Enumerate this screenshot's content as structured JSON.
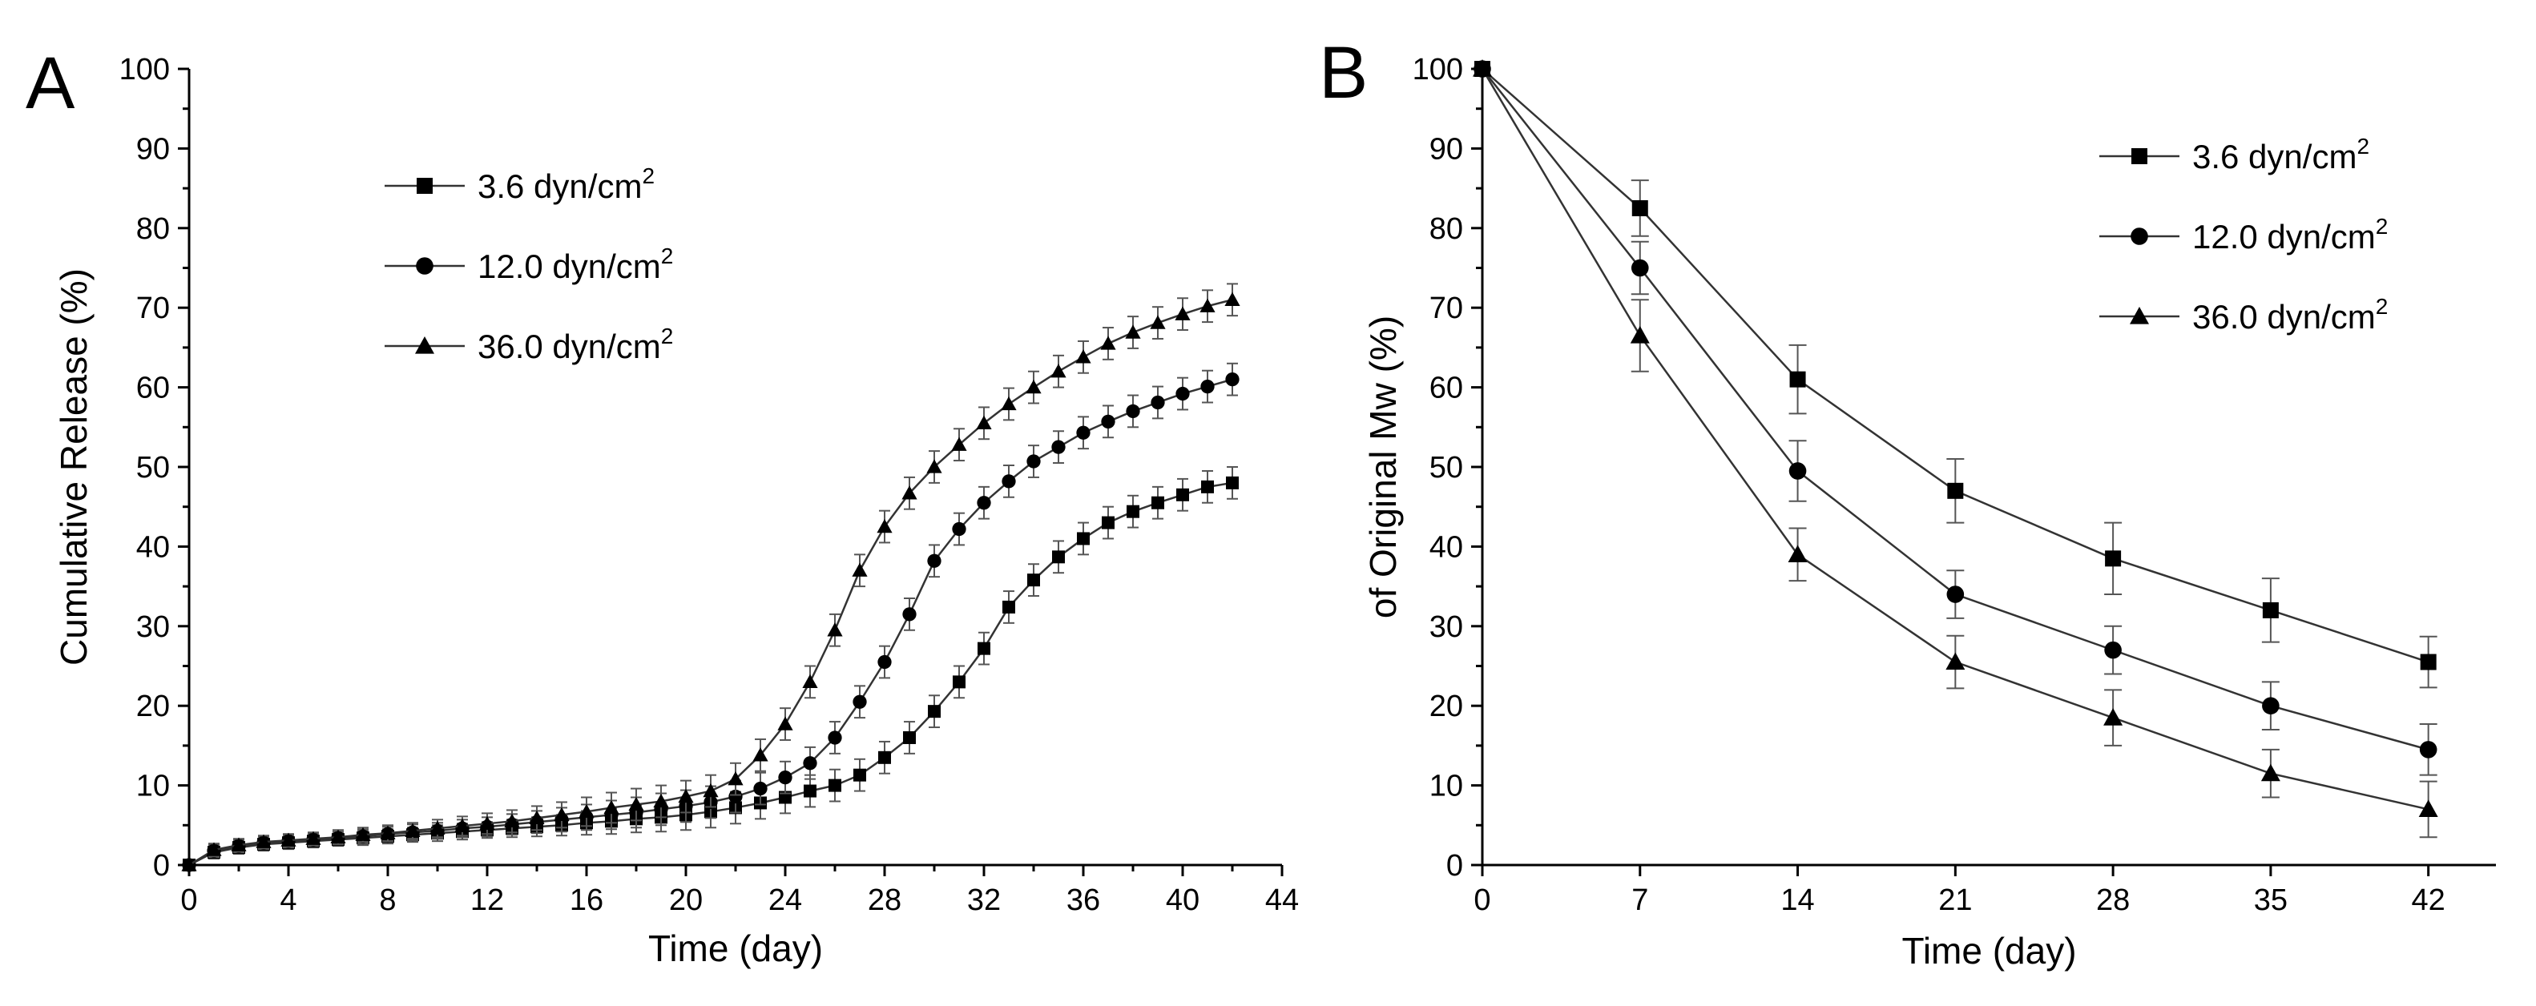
{
  "chart_data": [
    {
      "panel": "A",
      "type": "line",
      "xlabel": "Time (day)",
      "ylabel": "Cumulative Release (%)",
      "xlim": [
        0,
        44
      ],
      "ylim": [
        0,
        100
      ],
      "xticks": [
        "0",
        "4",
        "8",
        "12",
        "16",
        "20",
        "24",
        "28",
        "32",
        "36",
        "40",
        "44"
      ],
      "yticks": [
        "0",
        "10",
        "20",
        "30",
        "40",
        "50",
        "60",
        "70",
        "80",
        "90",
        "100"
      ],
      "legend": {
        "position": "top-left"
      },
      "series": [
        {
          "name": "3.6 dyn/cm",
          "superscript": "2",
          "marker": "square",
          "x": [
            0,
            1,
            2,
            3,
            4,
            5,
            6,
            7,
            8,
            9,
            10,
            11,
            12,
            13,
            14,
            15,
            16,
            17,
            18,
            19,
            20,
            21,
            22,
            23,
            24,
            25,
            26,
            27,
            28,
            29,
            30,
            31,
            32,
            33,
            34,
            35,
            36,
            37,
            38,
            39,
            40,
            41,
            42
          ],
          "y": [
            0,
            1.6,
            2.2,
            2.6,
            2.8,
            3.0,
            3.2,
            3.4,
            3.6,
            3.8,
            4.0,
            4.2,
            4.4,
            4.6,
            4.8,
            5.0,
            5.3,
            5.5,
            5.8,
            6.0,
            6.3,
            6.7,
            7.2,
            7.8,
            8.5,
            9.3,
            10.0,
            11.3,
            13.5,
            16.0,
            19.3,
            23.0,
            27.2,
            32.4,
            35.8,
            38.7,
            41.0,
            43.0,
            44.4,
            45.5,
            46.5,
            47.5,
            48.0
          ],
          "err": [
            0,
            0.8,
            0.8,
            0.8,
            0.8,
            0.8,
            0.8,
            0.9,
            0.9,
            0.9,
            1.0,
            1.0,
            1.0,
            1.1,
            1.2,
            1.3,
            1.5,
            1.6,
            1.7,
            1.8,
            1.9,
            2.0,
            2.0,
            2.0,
            2.0,
            2.0,
            2.0,
            2.0,
            2.0,
            2.0,
            2.0,
            2.0,
            2.0,
            2.0,
            2.0,
            2.0,
            2.0,
            2.0,
            2.0,
            2.0,
            2.0,
            2.0,
            2.0
          ]
        },
        {
          "name": "12.0 dyn/cm",
          "superscript": "2",
          "marker": "circle",
          "x": [
            0,
            1,
            2,
            3,
            4,
            5,
            6,
            7,
            8,
            9,
            10,
            11,
            12,
            13,
            14,
            15,
            16,
            17,
            18,
            19,
            20,
            21,
            22,
            23,
            24,
            25,
            26,
            27,
            28,
            29,
            30,
            31,
            32,
            33,
            34,
            35,
            36,
            37,
            38,
            39,
            40,
            41,
            42
          ],
          "y": [
            0,
            1.8,
            2.4,
            2.8,
            3.0,
            3.2,
            3.4,
            3.6,
            3.9,
            4.1,
            4.3,
            4.6,
            4.8,
            5.1,
            5.4,
            5.7,
            6.0,
            6.3,
            6.6,
            7.0,
            7.4,
            7.9,
            8.6,
            9.6,
            11.0,
            12.8,
            16.0,
            20.5,
            25.5,
            31.5,
            38.2,
            42.2,
            45.5,
            48.2,
            50.7,
            52.5,
            54.3,
            55.7,
            57.0,
            58.1,
            59.2,
            60.1,
            61.0
          ],
          "err": [
            0,
            0.8,
            0.8,
            0.8,
            0.8,
            0.8,
            0.8,
            0.9,
            0.9,
            1.0,
            1.0,
            1.1,
            1.2,
            1.3,
            1.4,
            1.5,
            1.6,
            1.8,
            1.9,
            2.0,
            2.0,
            2.0,
            2.0,
            2.0,
            2.0,
            2.0,
            2.0,
            2.0,
            2.0,
            2.0,
            2.0,
            2.0,
            2.0,
            2.0,
            2.0,
            2.0,
            2.0,
            2.0,
            2.0,
            2.0,
            2.0,
            2.0,
            2.0
          ]
        },
        {
          "name": "36.0 dyn/cm",
          "superscript": "2",
          "marker": "triangle",
          "x": [
            0,
            1,
            2,
            3,
            4,
            5,
            6,
            7,
            8,
            9,
            10,
            11,
            12,
            13,
            14,
            15,
            16,
            17,
            18,
            19,
            20,
            21,
            22,
            23,
            24,
            25,
            26,
            27,
            28,
            29,
            30,
            31,
            32,
            33,
            34,
            35,
            36,
            37,
            38,
            39,
            40,
            41,
            42
          ],
          "y": [
            0,
            1.9,
            2.5,
            2.9,
            3.1,
            3.3,
            3.5,
            3.8,
            4.0,
            4.3,
            4.6,
            4.9,
            5.2,
            5.5,
            5.9,
            6.3,
            6.7,
            7.2,
            7.6,
            8.0,
            8.6,
            9.3,
            10.8,
            13.8,
            17.7,
            23.0,
            29.5,
            37.0,
            42.5,
            46.7,
            50.0,
            52.8,
            55.5,
            57.9,
            60.0,
            62.0,
            63.8,
            65.5,
            66.9,
            68.1,
            69.2,
            70.2,
            71.0
          ],
          "err": [
            0,
            0.8,
            0.8,
            0.8,
            0.8,
            0.8,
            0.9,
            0.9,
            1.0,
            1.0,
            1.1,
            1.2,
            1.3,
            1.4,
            1.5,
            1.6,
            1.8,
            1.9,
            2.0,
            2.0,
            2.0,
            2.0,
            2.0,
            2.0,
            2.0,
            2.0,
            2.0,
            2.0,
            2.0,
            2.0,
            2.0,
            2.0,
            2.0,
            2.0,
            2.0,
            2.0,
            2.0,
            2.0,
            2.0,
            2.0,
            2.0,
            2.0,
            2.0
          ]
        }
      ]
    },
    {
      "panel": "B",
      "type": "line",
      "xlabel": "Time (day)",
      "ylabel": "of Original Mw (%)",
      "xlim": [
        0,
        45
      ],
      "ylim": [
        0,
        100
      ],
      "xticks": [
        "0",
        "7",
        "14",
        "21",
        "28",
        "35",
        "42"
      ],
      "yticks": [
        "0",
        "10",
        "20",
        "30",
        "40",
        "50",
        "60",
        "70",
        "80",
        "90",
        "100"
      ],
      "legend": {
        "position": "top-right"
      },
      "series": [
        {
          "name": "3.6 dyn/cm",
          "superscript": "2",
          "marker": "square",
          "x": [
            0,
            7,
            14,
            21,
            28,
            35,
            42
          ],
          "y": [
            100,
            82.5,
            61.0,
            47.0,
            38.5,
            32.0,
            25.5
          ],
          "err": [
            0,
            3.5,
            4.3,
            4.0,
            4.5,
            4.0,
            3.2
          ]
        },
        {
          "name": "12.0 dyn/cm",
          "superscript": "2",
          "marker": "circle",
          "x": [
            0,
            7,
            14,
            21,
            28,
            35,
            42
          ],
          "y": [
            100,
            75.0,
            49.5,
            34.0,
            27.0,
            20.0,
            14.5
          ],
          "err": [
            0,
            3.3,
            3.8,
            3.0,
            3.0,
            3.0,
            3.2
          ]
        },
        {
          "name": "36.0 dyn/cm",
          "superscript": "2",
          "marker": "triangle",
          "x": [
            0,
            7,
            14,
            21,
            28,
            35,
            42
          ],
          "y": [
            100,
            66.5,
            39.0,
            25.5,
            18.5,
            11.5,
            7.0
          ],
          "err": [
            0,
            4.5,
            3.3,
            3.3,
            3.5,
            3.0,
            3.5
          ]
        }
      ]
    }
  ]
}
